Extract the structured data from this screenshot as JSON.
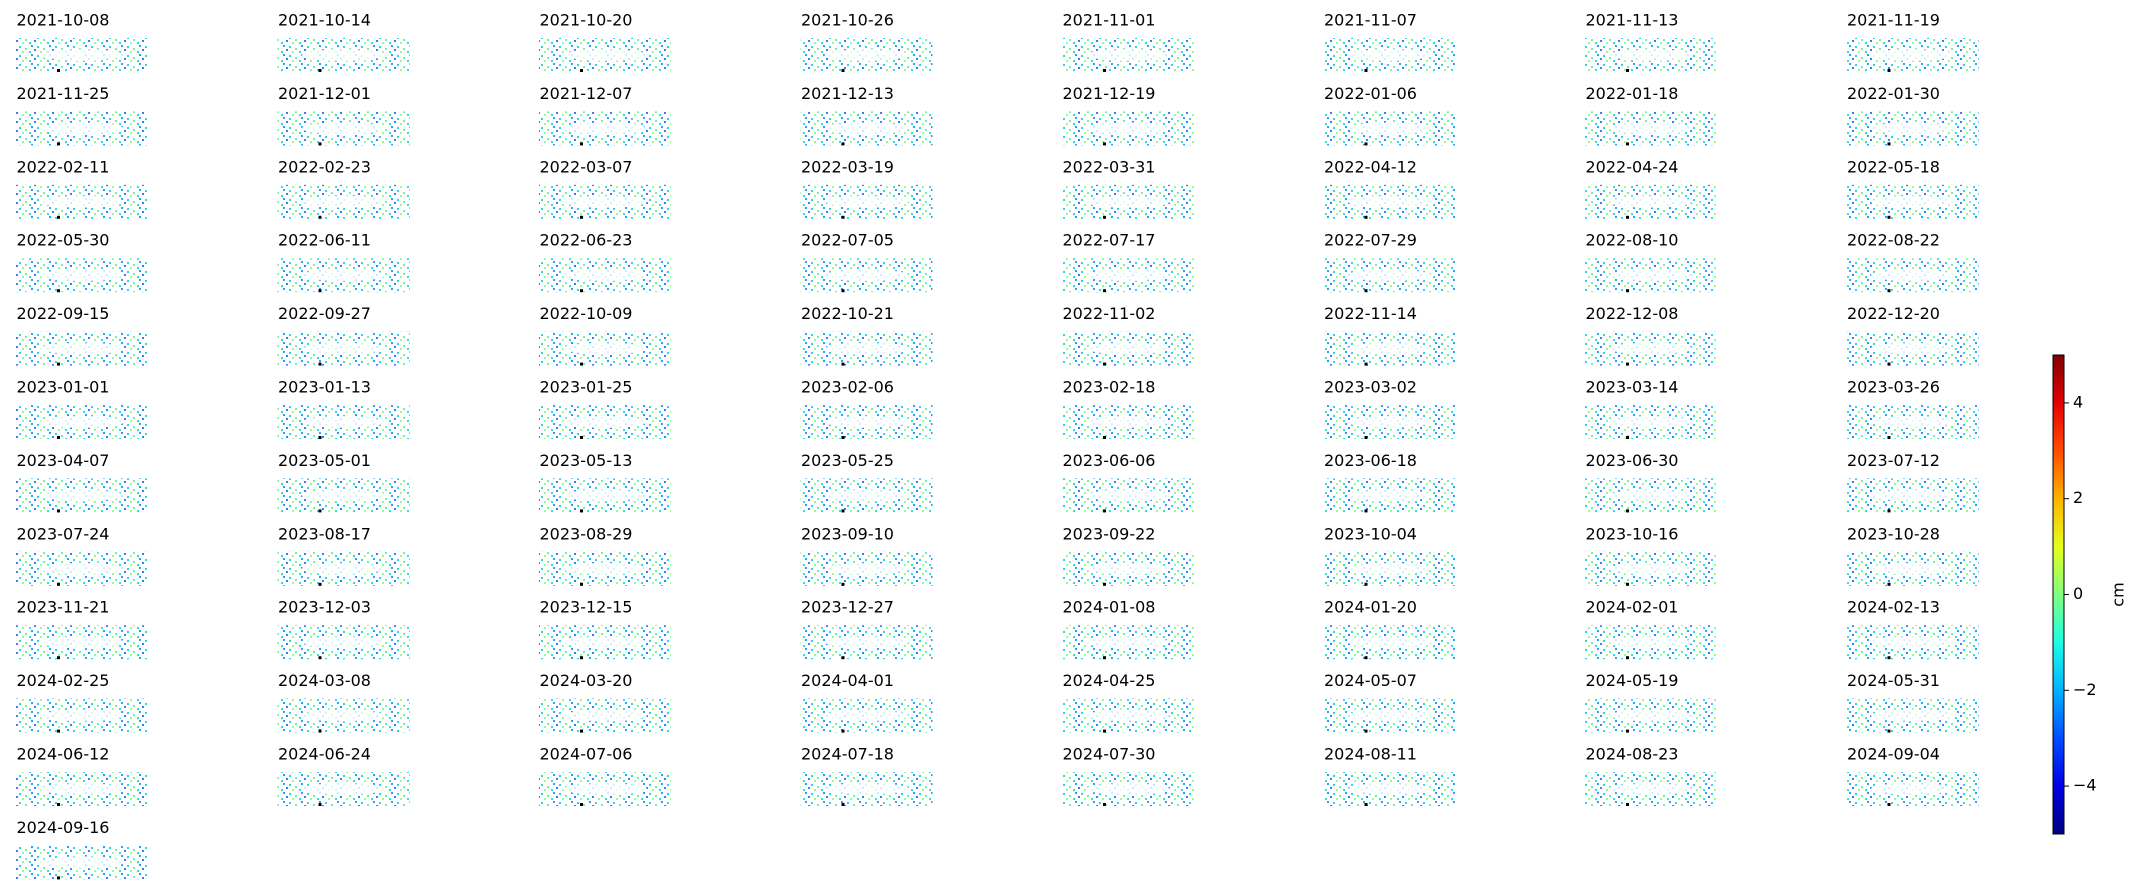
{
  "chart_data": {
    "type": "small-multiples",
    "panel_titles": [
      "2021-10-08",
      "2021-10-14",
      "2021-10-20",
      "2021-10-26",
      "2021-11-01",
      "2021-11-07",
      "2021-11-13",
      "2021-11-19",
      "2021-11-25",
      "2021-12-01",
      "2021-12-07",
      "2021-12-13",
      "2021-12-19",
      "2022-01-06",
      "2022-01-18",
      "2022-01-30",
      "2022-02-11",
      "2022-02-23",
      "2022-03-07",
      "2022-03-19",
      "2022-03-31",
      "2022-04-12",
      "2022-04-24",
      "2022-05-18",
      "2022-05-30",
      "2022-06-11",
      "2022-06-23",
      "2022-07-05",
      "2022-07-17",
      "2022-07-29",
      "2022-08-10",
      "2022-08-22",
      "2022-09-15",
      "2022-09-27",
      "2022-10-09",
      "2022-10-21",
      "2022-11-02",
      "2022-11-14",
      "2022-12-08",
      "2022-12-20",
      "2023-01-01",
      "2023-01-13",
      "2023-01-25",
      "2023-02-06",
      "2023-02-18",
      "2023-03-02",
      "2023-03-14",
      "2023-03-26",
      "2023-04-07",
      "2023-05-01",
      "2023-05-13",
      "2023-05-25",
      "2023-06-06",
      "2023-06-18",
      "2023-06-30",
      "2023-07-12",
      "2023-07-24",
      "2023-08-17",
      "2023-08-29",
      "2023-09-10",
      "2023-09-22",
      "2023-10-04",
      "2023-10-16",
      "2023-10-28",
      "2023-11-21",
      "2023-12-03",
      "2023-12-15",
      "2023-12-27",
      "2024-01-08",
      "2024-01-20",
      "2024-02-01",
      "2024-02-13",
      "2024-02-25",
      "2024-03-08",
      "2024-03-20",
      "2024-04-01",
      "2024-04-25",
      "2024-05-07",
      "2024-05-19",
      "2024-05-31",
      "2024-06-12",
      "2024-06-24",
      "2024-07-06",
      "2024-07-18",
      "2024-07-30",
      "2024-08-11",
      "2024-08-23",
      "2024-09-04",
      "2024-09-16"
    ],
    "columns": 8,
    "colorbar": {
      "label": "cm",
      "colormap": "jet",
      "lim": [
        -5,
        5
      ],
      "ticks": [
        {
          "value": -4,
          "label": "−4"
        },
        {
          "value": -2,
          "label": "−2"
        },
        0,
        2,
        4
      ]
    }
  }
}
